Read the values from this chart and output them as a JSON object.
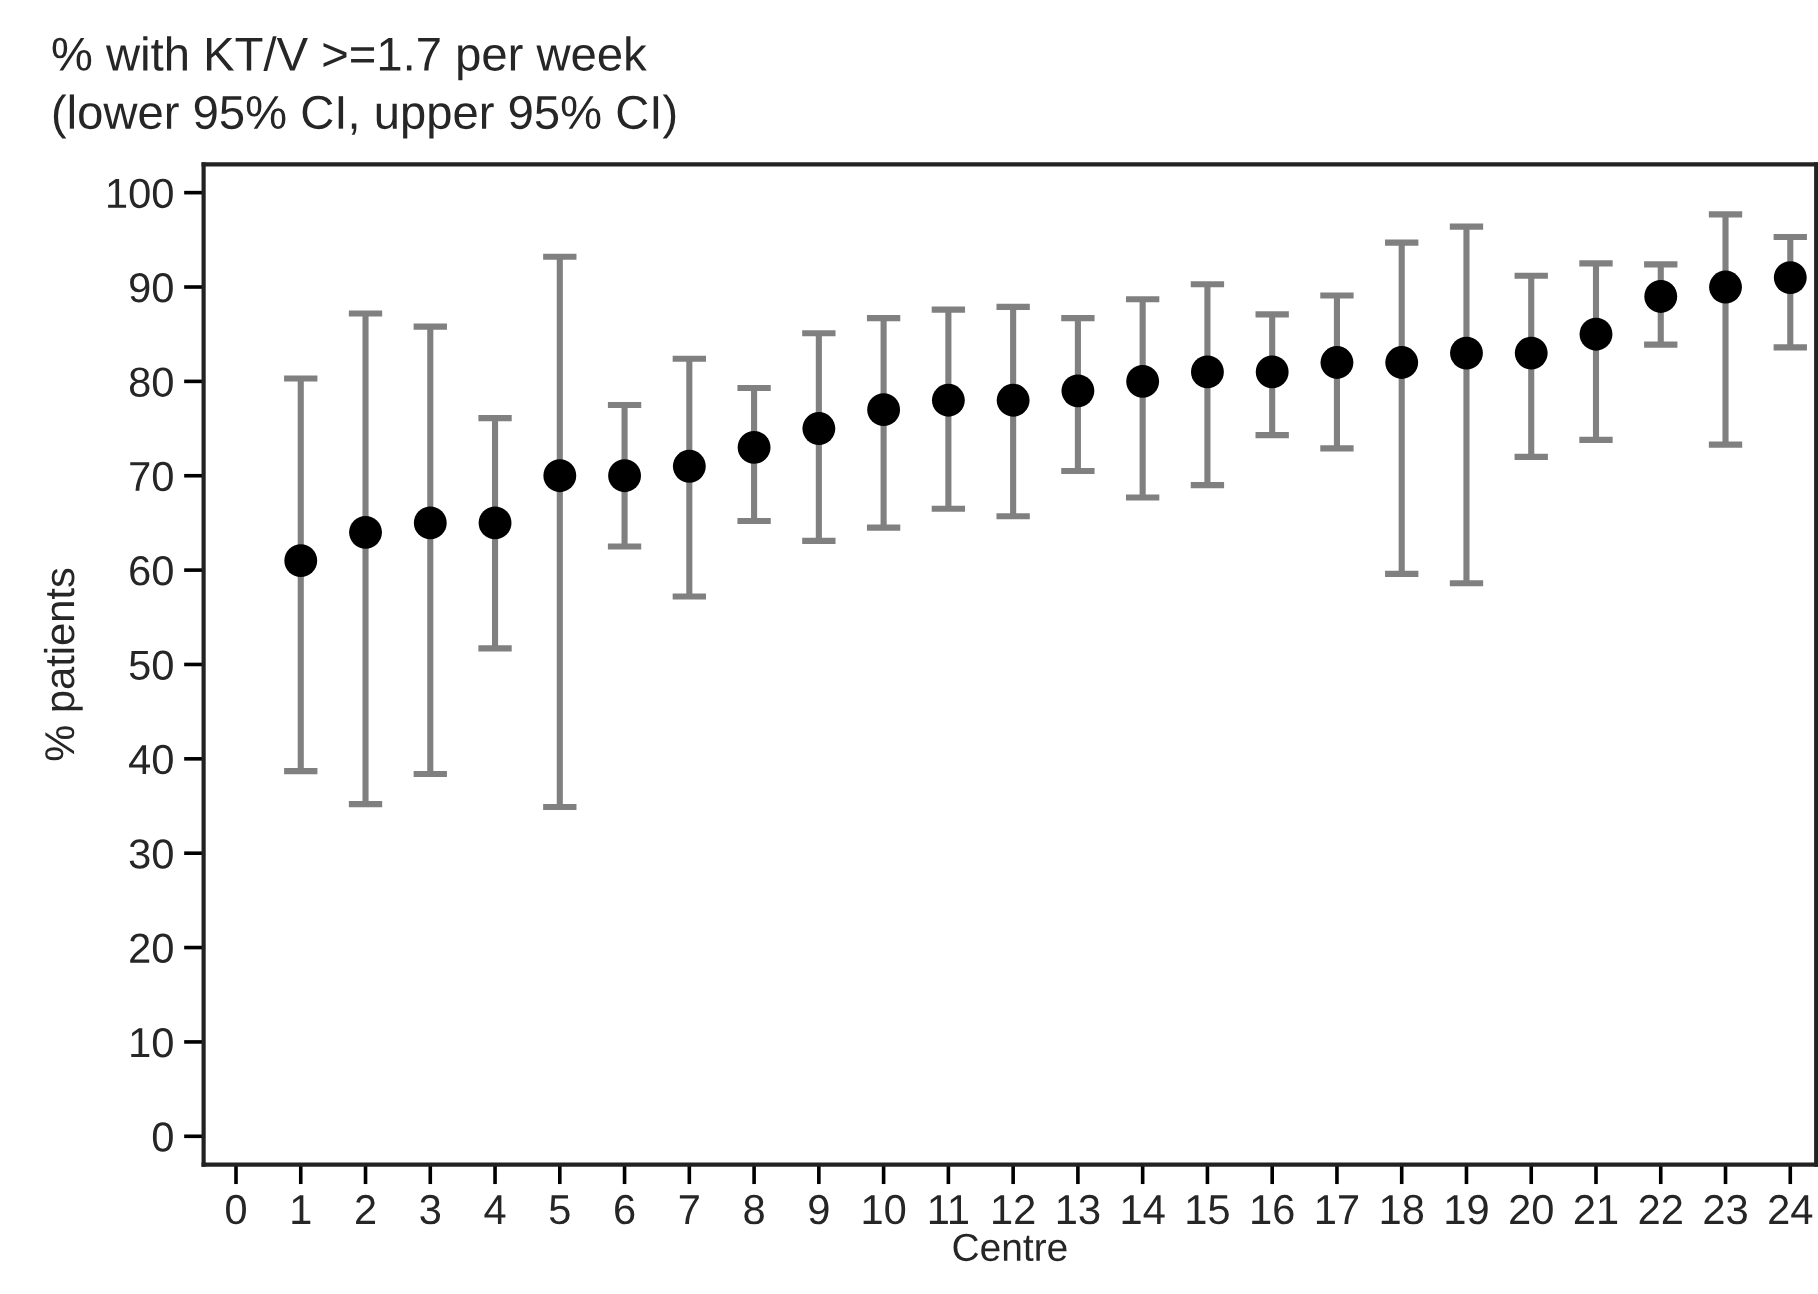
{
  "chart_data": {
    "type": "scatter",
    "title": "% with KT/V >=1.7 per week",
    "subtitle": "(lower 95% CI, upper 95% CI)",
    "xlabel": "Centre",
    "ylabel": "% patients",
    "x": [
      1,
      2,
      3,
      4,
      5,
      6,
      7,
      8,
      9,
      10,
      11,
      12,
      13,
      14,
      15,
      16,
      17,
      18,
      19,
      20,
      21,
      22,
      23,
      24
    ],
    "series": [
      {
        "color": "#000000",
        "values": [
          61,
          64,
          65,
          65,
          70,
          70,
          71,
          73,
          75,
          77,
          78,
          78,
          79,
          80,
          81,
          81,
          82,
          82,
          83,
          83,
          85,
          89,
          90,
          91
        ],
        "errors": [
          [
            38.7,
            80.3
          ],
          [
            35.2,
            87.2
          ],
          [
            38.4,
            85.8
          ],
          [
            51.7,
            76.1
          ],
          [
            34.9,
            93.2
          ],
          [
            62.5,
            77.5
          ],
          [
            57.2,
            82.4
          ],
          [
            65.2,
            79.3
          ],
          [
            63.1,
            85.1
          ],
          [
            64.5,
            86.7
          ],
          [
            66.5,
            87.6
          ],
          [
            65.7,
            87.9
          ],
          [
            70.5,
            86.7
          ],
          [
            67.7,
            88.7
          ],
          [
            69.0,
            90.3
          ],
          [
            74.3,
            87.1
          ],
          [
            72.9,
            89.1
          ],
          [
            59.6,
            94.7
          ],
          [
            58.6,
            96.4
          ],
          [
            72.0,
            91.2
          ],
          [
            73.8,
            92.5
          ],
          [
            83.9,
            92.4
          ],
          [
            73.3,
            97.7
          ],
          [
            83.6,
            95.3
          ]
        ]
      }
    ],
    "xlim": [
      -0.5,
      24.4
    ],
    "ylim": [
      -3,
      103
    ],
    "xticks": [
      0,
      1,
      2,
      3,
      4,
      5,
      6,
      7,
      8,
      9,
      10,
      11,
      12,
      13,
      14,
      15,
      16,
      17,
      18,
      19,
      20,
      21,
      22,
      23,
      24
    ],
    "yticks": [
      0,
      10,
      20,
      30,
      40,
      50,
      60,
      70,
      80,
      90,
      100
    ],
    "marker": "circle",
    "grid": false,
    "legend": false
  }
}
